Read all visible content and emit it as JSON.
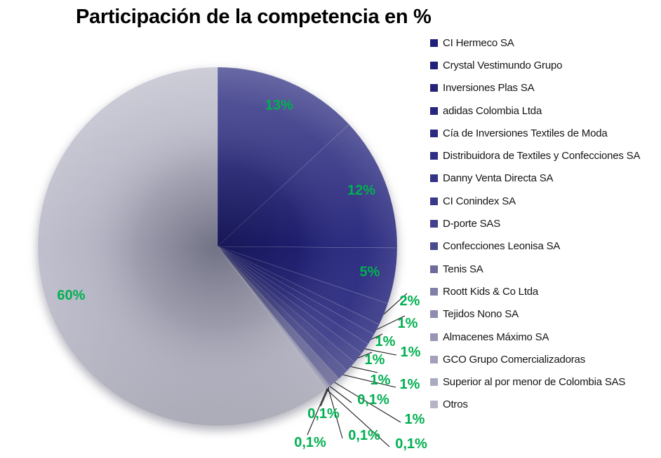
{
  "title": "Participación de la competencia en %",
  "chart_data": {
    "type": "pie",
    "title": "Participación de la competencia en %",
    "legend_position": "right",
    "label_color": "#00B050",
    "categories": [
      "CI Hermeco SA",
      "Crystal Vestimundo Grupo",
      "Inversiones Plas SA",
      "adidas Colombia Ltda",
      "Cía de Inversiones Textiles de Moda",
      "Distribuidora de Textiles y Confecciones SA",
      "Danny Venta Directa SA",
      "CI Conindex SA",
      "D-porte SAS",
      "Confecciones Leonisa SA",
      "Tenis SA",
      "Roott Kids & Co Ltda",
      "Tejidos Nono SA",
      "Almacenes Máximo SA",
      "GCO Grupo Comercializadoras",
      "Superior al por menor de Colombia SAS",
      "Otros"
    ],
    "values": [
      13,
      12,
      5,
      2,
      1,
      1,
      1,
      1,
      1,
      1,
      1,
      0.1,
      0.1,
      0.1,
      0.1,
      0.1,
      60
    ],
    "labels": [
      "13%",
      "12%",
      "5%",
      "2%",
      "1%",
      "1%",
      "1%",
      "1%",
      "1%",
      "1%",
      "1%",
      "0,1%",
      "0,1%",
      "0,1%",
      "0,1%",
      "0,1%",
      "60%"
    ],
    "colors": [
      "#1F1F78",
      "#21217A",
      "#23237C",
      "#26267E",
      "#2A2A81",
      "#2E2E84",
      "#333387",
      "#39398A",
      "#41418D",
      "#4B4B90",
      "#6B6B9D",
      "#7F7FA7",
      "#8C8CAE",
      "#9797B4",
      "#A1A1BA",
      "#ABABBF",
      "#B5B5C5"
    ]
  }
}
